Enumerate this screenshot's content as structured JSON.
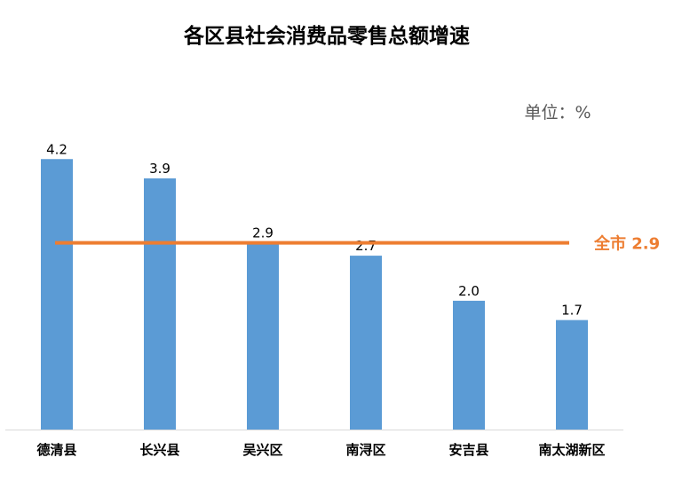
{
  "colors": {
    "bar": "#5B9BD5",
    "reference": "#ED7D31",
    "axis": "#D9D9D9"
  },
  "chart_data": {
    "type": "bar",
    "title": "各区县社会消费品零售总额增速",
    "unit_label": "单位：%",
    "categories": [
      "德清县",
      "长兴县",
      "吴兴区",
      "南浔区",
      "安吉县",
      "南太湖新区"
    ],
    "values": [
      4.2,
      3.9,
      2.9,
      2.7,
      2.0,
      1.7
    ],
    "value_labels": [
      "4.2",
      "3.9",
      "2.9",
      "2.7",
      "2.0",
      "1.7"
    ],
    "reference_line": {
      "value": 2.9,
      "label": "全市 2.9"
    },
    "ylim": [
      0,
      4.3
    ],
    "grid": false,
    "legend": "none"
  }
}
